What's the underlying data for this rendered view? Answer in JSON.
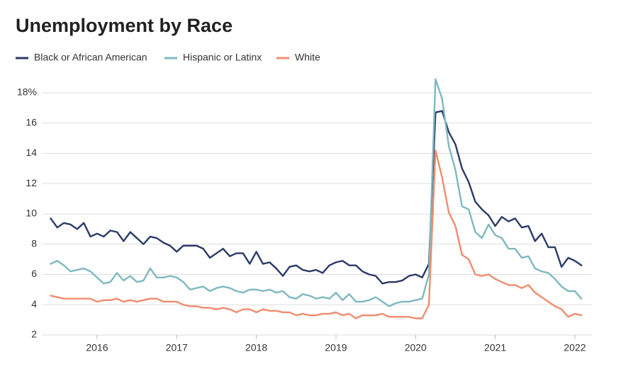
{
  "chart_data": {
    "type": "line",
    "title": "Unemployment by Race",
    "x": [
      2015.417,
      2015.5,
      2015.583,
      2015.667,
      2015.75,
      2015.833,
      2015.917,
      2016,
      2016.083,
      2016.167,
      2016.25,
      2016.333,
      2016.417,
      2016.5,
      2016.583,
      2016.667,
      2016.75,
      2016.833,
      2016.917,
      2017,
      2017.083,
      2017.167,
      2017.25,
      2017.333,
      2017.417,
      2017.5,
      2017.583,
      2017.667,
      2017.75,
      2017.833,
      2017.917,
      2018,
      2018.083,
      2018.167,
      2018.25,
      2018.333,
      2018.417,
      2018.5,
      2018.583,
      2018.667,
      2018.75,
      2018.833,
      2018.917,
      2019,
      2019.083,
      2019.167,
      2019.25,
      2019.333,
      2019.417,
      2019.5,
      2019.583,
      2019.667,
      2019.75,
      2019.833,
      2019.917,
      2020,
      2020.083,
      2020.167,
      2020.25,
      2020.333,
      2020.417,
      2020.5,
      2020.583,
      2020.667,
      2020.75,
      2020.833,
      2020.917,
      2021,
      2021.083,
      2021.167,
      2021.25,
      2021.333,
      2021.417,
      2021.5,
      2021.583,
      2021.667,
      2021.75,
      2021.833,
      2021.917,
      2022,
      2022.083
    ],
    "series": [
      {
        "name": "Black or African American",
        "color": "#2b3a67",
        "values": [
          9.7,
          9.1,
          9.4,
          9.3,
          9.0,
          9.4,
          8.5,
          8.7,
          8.5,
          8.9,
          8.8,
          8.2,
          8.8,
          8.4,
          8.0,
          8.5,
          8.4,
          8.1,
          7.9,
          7.5,
          7.9,
          7.9,
          7.9,
          7.7,
          7.1,
          7.4,
          7.7,
          7.2,
          7.4,
          7.4,
          6.7,
          7.5,
          6.7,
          6.8,
          6.4,
          5.9,
          6.5,
          6.6,
          6.3,
          6.2,
          6.3,
          6.1,
          6.6,
          6.8,
          6.9,
          6.6,
          6.6,
          6.2,
          6.0,
          5.9,
          5.4,
          5.5,
          5.5,
          5.6,
          5.9,
          6.0,
          5.8,
          6.7,
          16.7,
          16.8,
          15.4,
          14.6,
          13.0,
          12.1,
          10.8,
          10.3,
          9.9,
          9.2,
          9.8,
          9.5,
          9.7,
          9.1,
          9.2,
          8.2,
          8.7,
          7.8,
          7.8,
          6.5,
          7.1,
          6.9,
          6.6
        ]
      },
      {
        "name": "Hispanic or Latinx",
        "color": "#7fb8bf",
        "values": [
          6.7,
          6.9,
          6.6,
          6.2,
          6.3,
          6.4,
          6.2,
          5.8,
          5.4,
          5.5,
          6.1,
          5.6,
          5.9,
          5.5,
          5.6,
          6.4,
          5.8,
          5.8,
          5.9,
          5.8,
          5.5,
          5.0,
          5.1,
          5.2,
          4.9,
          5.1,
          5.2,
          5.1,
          4.9,
          4.8,
          5.0,
          5.0,
          4.9,
          5.0,
          4.8,
          4.9,
          4.5,
          4.4,
          4.7,
          4.6,
          4.4,
          4.5,
          4.4,
          4.8,
          4.3,
          4.7,
          4.2,
          4.2,
          4.3,
          4.5,
          4.2,
          3.9,
          4.1,
          4.2,
          4.2,
          4.3,
          4.4,
          6.0,
          18.9,
          17.6,
          14.5,
          12.9,
          10.5,
          10.3,
          8.8,
          8.4,
          9.3,
          8.6,
          8.4,
          7.7,
          7.7,
          7.1,
          7.2,
          6.4,
          6.2,
          6.1,
          5.7,
          5.2,
          4.9,
          4.9,
          4.4
        ]
      },
      {
        "name": "White",
        "color": "#f08c6e",
        "values": [
          4.6,
          4.5,
          4.4,
          4.4,
          4.4,
          4.4,
          4.4,
          4.2,
          4.3,
          4.3,
          4.4,
          4.2,
          4.3,
          4.2,
          4.3,
          4.4,
          4.4,
          4.2,
          4.2,
          4.2,
          4.0,
          3.9,
          3.9,
          3.8,
          3.8,
          3.7,
          3.8,
          3.7,
          3.5,
          3.7,
          3.7,
          3.5,
          3.7,
          3.6,
          3.6,
          3.5,
          3.5,
          3.3,
          3.4,
          3.3,
          3.3,
          3.4,
          3.4,
          3.5,
          3.3,
          3.4,
          3.1,
          3.3,
          3.3,
          3.3,
          3.4,
          3.2,
          3.2,
          3.2,
          3.2,
          3.1,
          3.1,
          4.0,
          14.2,
          12.4,
          10.1,
          9.2,
          7.3,
          7.0,
          6.0,
          5.9,
          6.0,
          5.7,
          5.5,
          5.3,
          5.3,
          5.1,
          5.3,
          4.8,
          4.5,
          4.2,
          3.9,
          3.7,
          3.2,
          3.4,
          3.3
        ]
      }
    ],
    "xlim": [
      2015.315,
      2022.214
    ],
    "xticks": [
      2016,
      2017,
      2018,
      2019,
      2020,
      2021,
      2022
    ],
    "ylim": [
      2,
      19
    ],
    "yticks": [
      2,
      4,
      6,
      8,
      10,
      12,
      14,
      16,
      {
        "value": 18,
        "label": "18%"
      }
    ],
    "grid": true,
    "legend": "top"
  }
}
